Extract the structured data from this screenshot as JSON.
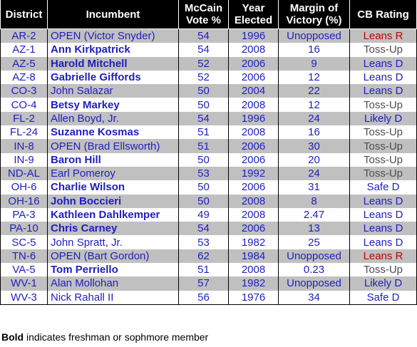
{
  "columns": {
    "district": "District",
    "incumbent": "Incumbent",
    "mccain_l1": "McCain",
    "mccain_l2": "Vote %",
    "year_l1": "Year",
    "year_l2": "Elected",
    "margin_l1": "Margin of",
    "margin_l2": "Victory (%)",
    "rating": "CB Rating"
  },
  "rows": [
    {
      "district": "AR-2",
      "incumbent": "OPEN (Victor Snyder)",
      "bold": false,
      "mccain": "54",
      "year": "1996",
      "margin": "Unopposed",
      "rating": "Leans R"
    },
    {
      "district": "AZ-1",
      "incumbent": "Ann Kirkpatrick",
      "bold": true,
      "mccain": "54",
      "year": "2008",
      "margin": "16",
      "rating": "Toss-Up"
    },
    {
      "district": "AZ-5",
      "incumbent": "Harold Mitchell",
      "bold": true,
      "mccain": "52",
      "year": "2006",
      "margin": "9",
      "rating": "Leans D"
    },
    {
      "district": "AZ-8",
      "incumbent": "Gabrielle Giffords",
      "bold": true,
      "mccain": "52",
      "year": "2006",
      "margin": "12",
      "rating": "Leans D"
    },
    {
      "district": "CO-3",
      "incumbent": "John Salazar",
      "bold": false,
      "mccain": "50",
      "year": "2004",
      "margin": "22",
      "rating": "Leans D"
    },
    {
      "district": "CO-4",
      "incumbent": "Betsy Markey",
      "bold": true,
      "mccain": "50",
      "year": "2008",
      "margin": "12",
      "rating": "Toss-Up"
    },
    {
      "district": "FL-2",
      "incumbent": "Allen Boyd, Jr.",
      "bold": false,
      "mccain": "54",
      "year": "1996",
      "margin": "24",
      "rating": "Likely D"
    },
    {
      "district": "FL-24",
      "incumbent": "Suzanne Kosmas",
      "bold": true,
      "mccain": "51",
      "year": "2008",
      "margin": "16",
      "rating": "Toss-Up"
    },
    {
      "district": "IN-8",
      "incumbent": "OPEN (Brad Ellsworth)",
      "bold": false,
      "mccain": "51",
      "year": "2006",
      "margin": "30",
      "rating": "Toss-Up"
    },
    {
      "district": "IN-9",
      "incumbent": "Baron Hill",
      "bold": true,
      "mccain": "50",
      "year": "2006",
      "margin": "20",
      "rating": "Toss-Up"
    },
    {
      "district": "ND-AL",
      "incumbent": "Earl Pomeroy",
      "bold": false,
      "mccain": "53",
      "year": "1992",
      "margin": "24",
      "rating": "Toss-Up"
    },
    {
      "district": "OH-6",
      "incumbent": "Charlie Wilson",
      "bold": true,
      "mccain": "50",
      "year": "2006",
      "margin": "31",
      "rating": "Safe D"
    },
    {
      "district": "OH-16",
      "incumbent": "John Boccieri",
      "bold": true,
      "mccain": "50",
      "year": "2008",
      "margin": "8",
      "rating": "Leans D"
    },
    {
      "district": "PA-3",
      "incumbent": "Kathleen Dahlkemper",
      "bold": true,
      "mccain": "49",
      "year": "2008",
      "margin": "2.47",
      "rating": "Leans D"
    },
    {
      "district": "PA-10",
      "incumbent": "Chris Carney",
      "bold": true,
      "mccain": "54",
      "year": "2006",
      "margin": "13",
      "rating": "Leans D"
    },
    {
      "district": "SC-5",
      "incumbent": "John Spratt, Jr.",
      "bold": false,
      "mccain": "53",
      "year": "1982",
      "margin": "25",
      "rating": "Leans D"
    },
    {
      "district": "TN-6",
      "incumbent": "OPEN (Bart Gordon)",
      "bold": false,
      "mccain": "62",
      "year": "1984",
      "margin": "Unopposed",
      "rating": "Leans R"
    },
    {
      "district": "VA-5",
      "incumbent": "Tom Perriello",
      "bold": true,
      "mccain": "51",
      "year": "2008",
      "margin": "0.23",
      "rating": "Toss-Up"
    },
    {
      "district": "WV-1",
      "incumbent": "Alan Mollohan",
      "bold": false,
      "mccain": "57",
      "year": "1982",
      "margin": "Unopposed",
      "rating": "Likely D"
    },
    {
      "district": "WV-3",
      "incumbent": "Nick Rahall II",
      "bold": false,
      "mccain": "56",
      "year": "1976",
      "margin": "34",
      "rating": "Safe D"
    }
  ],
  "rating_colors": {
    "Leans R": "#c00000",
    "Toss-Up": "#4d4d4d",
    "Leans D": "#1f1fbf",
    "Likely D": "#1f1fbf",
    "Safe D": "#1f1fbf"
  },
  "stripe_color": "#c0c0c0",
  "footnote": {
    "bold_part": "Bold",
    "rest": " indicates freshman or sophmore member"
  }
}
